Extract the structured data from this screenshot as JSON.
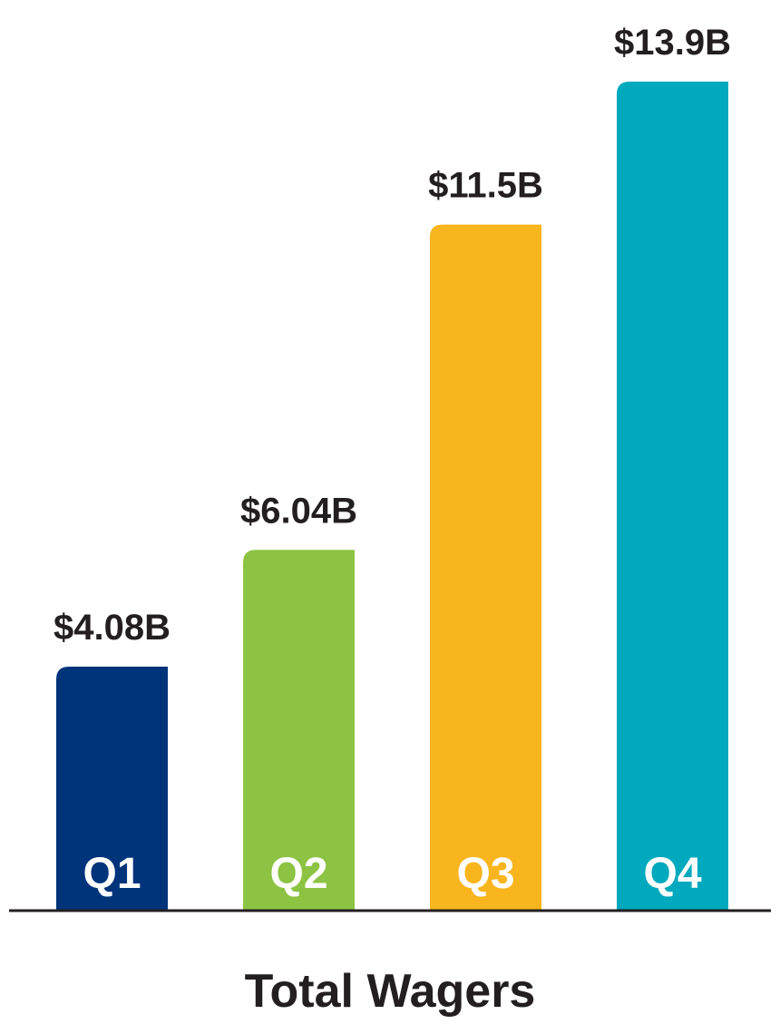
{
  "chart_data": {
    "type": "bar",
    "title": "Total Wagers",
    "categories": [
      "Q1",
      "Q2",
      "Q3",
      "Q4"
    ],
    "values": [
      4.08,
      6.04,
      11.5,
      13.9
    ],
    "value_labels": [
      "$4.08B",
      "$6.04B",
      "$11.5B",
      "$13.9B"
    ],
    "colors": [
      "#00347a",
      "#8dc343",
      "#f8b51d",
      "#00a9bd"
    ],
    "unit": "$B",
    "ylim": [
      0,
      13.9
    ],
    "grid": false,
    "legend": "none"
  }
}
